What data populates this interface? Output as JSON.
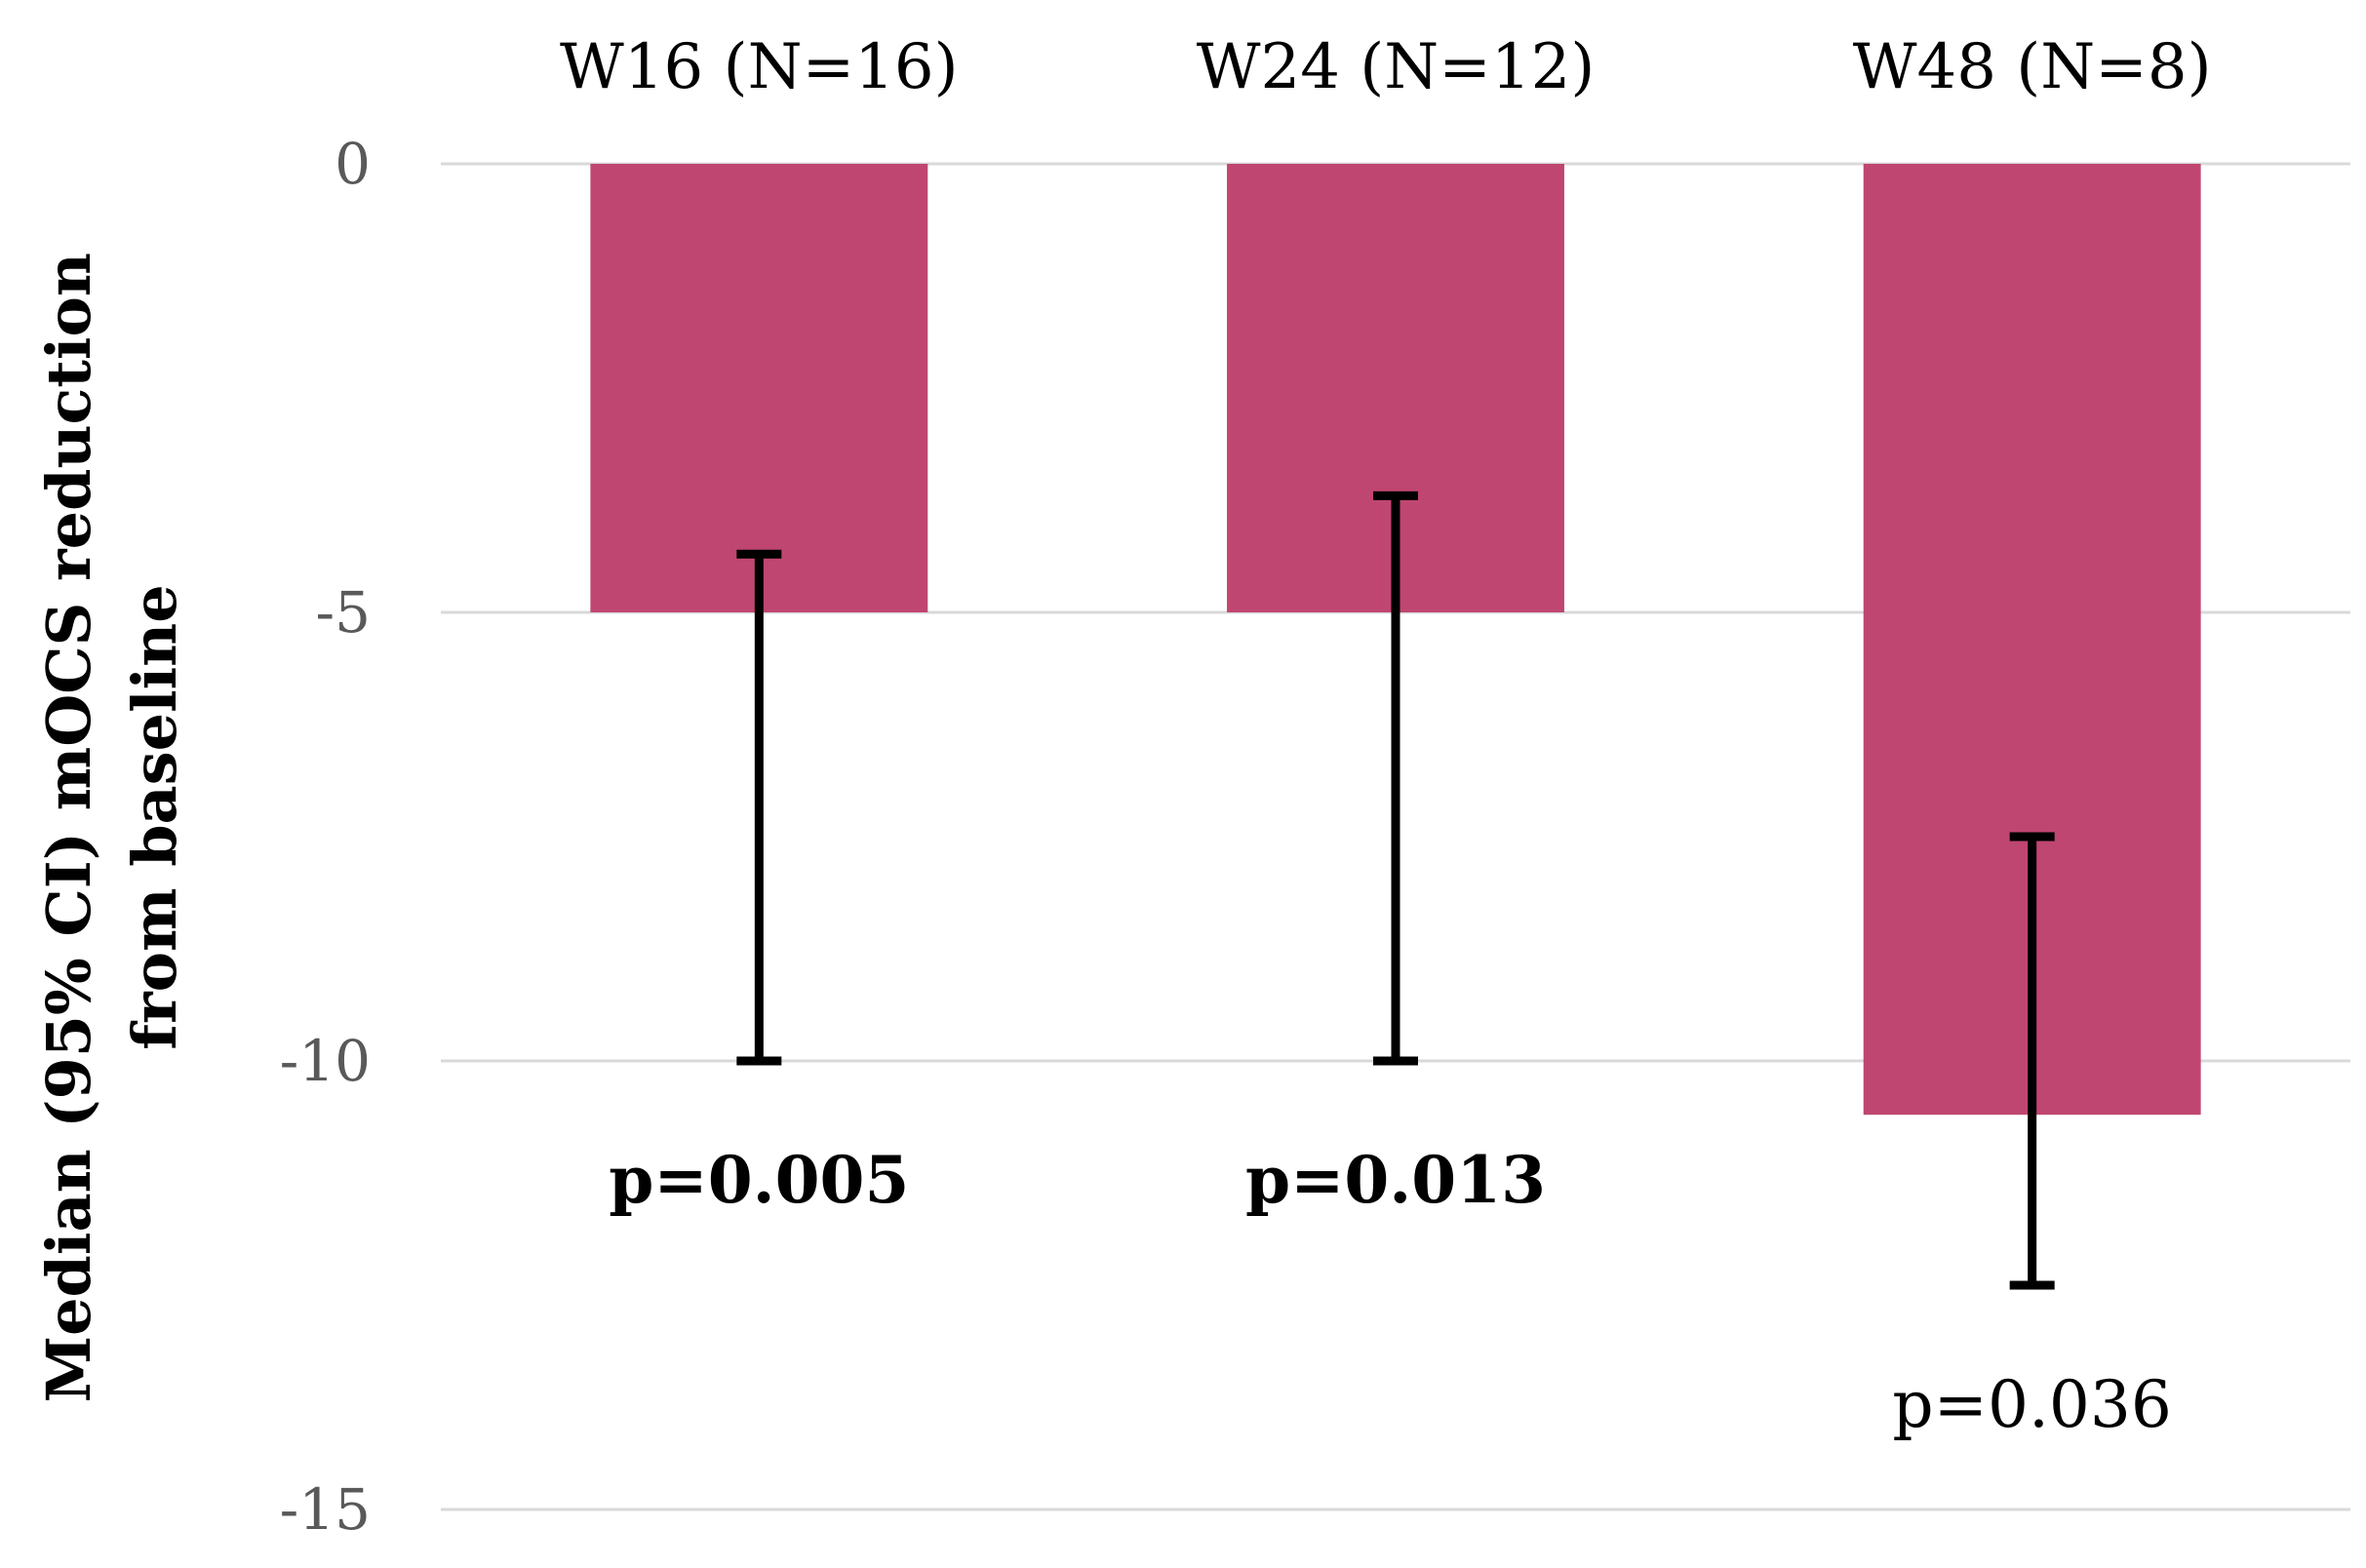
{
  "chart_data": {
    "type": "bar",
    "title": "",
    "xlabel": "",
    "ylabel_lines": [
      "Median (95% CI) mOCS reduction",
      "from baseline"
    ],
    "ylim": [
      -15,
      0
    ],
    "yticks": [
      0,
      -5,
      -10,
      -15
    ],
    "ytick_labels": [
      "0",
      "-5",
      "-10",
      "-15"
    ],
    "grid": true,
    "bar_color": "#bf4671",
    "categories": [
      "W16 (N=16)",
      "W24 (N=12)",
      "W48 (N=8)"
    ],
    "values": [
      -5,
      -5,
      -10.6
    ],
    "ci_upper": [
      -4.35,
      -3.7,
      -7.5
    ],
    "ci_lower": [
      -10,
      -10,
      -12.5
    ],
    "p_values": [
      "p=0.005",
      "p=0.013",
      "p=0.036"
    ],
    "p_bold": [
      true,
      true,
      false
    ]
  }
}
